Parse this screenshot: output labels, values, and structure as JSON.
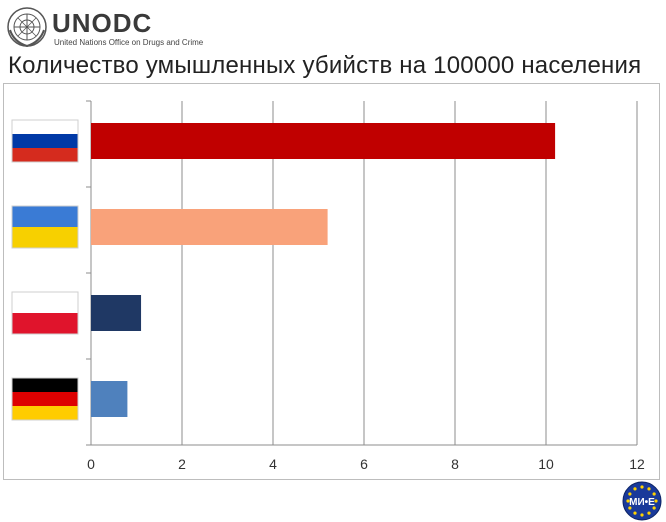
{
  "logo": {
    "name": "UNODC",
    "subtitle": "United Nations Office on Drugs and Crime",
    "emblem_icon": "un-emblem-icon"
  },
  "title": "Количество умышленных убийств на 100000 населения",
  "badge": {
    "text": "МИ•Е",
    "icon": "eu-stars-badge-icon",
    "color": "#1a3a9a",
    "star_color": "#ffd200"
  },
  "chart_data": {
    "type": "bar",
    "orientation": "horizontal",
    "categories": [
      "Russia",
      "Ukraine",
      "Poland",
      "Germany"
    ],
    "category_display": "flag-icons",
    "values": [
      10.2,
      5.2,
      1.1,
      0.8
    ],
    "bar_colors": [
      "#c00000",
      "#f9a27a",
      "#1f3864",
      "#4f81bd"
    ],
    "xlim": [
      0,
      12
    ],
    "xticks": [
      "0",
      "2",
      "4",
      "6",
      "8",
      "10",
      "12"
    ],
    "grid": "vertical",
    "legend": "none",
    "title": "Количество умышленных убийств на 100000 населения",
    "xlabel": "",
    "ylabel": ""
  },
  "flags": [
    {
      "icon": "russia-flag-icon",
      "stripes": [
        "#ffffff",
        "#0039a6",
        "#d52b1e"
      ]
    },
    {
      "icon": "ukraine-flag-icon",
      "stripes": [
        "#3a7bd5",
        "#f7d000"
      ]
    },
    {
      "icon": "poland-flag-icon",
      "stripes": [
        "#ffffff",
        "#e0142c"
      ]
    },
    {
      "icon": "germany-flag-icon",
      "stripes": [
        "#000000",
        "#dd0000",
        "#ffcc00"
      ]
    }
  ]
}
